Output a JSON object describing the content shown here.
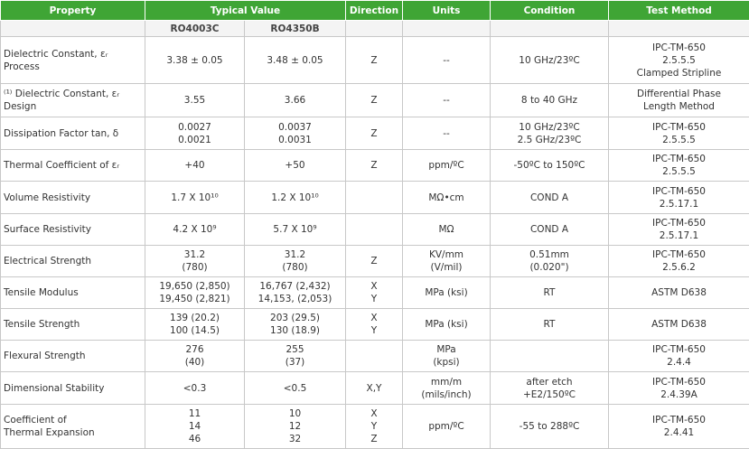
{
  "header": {
    "columns": [
      "Property",
      "Typical Value",
      "Direction",
      "Units",
      "Condition",
      "Test Method"
    ],
    "subcolumns": [
      "RO4003C",
      "RO4350B"
    ]
  },
  "table": {
    "rows": [
      [
        "Dielectric Constant, εᵣ\nProcess",
        "3.38 ± 0.05",
        "3.48 ± 0.05",
        "Z",
        "--",
        "10 GHz/23ºC",
        "IPC-TM-650\n2.5.5.5\nClamped Stripline"
      ],
      [
        "⁽¹⁾ Dielectric Constant, εᵣ\nDesign",
        "3.55",
        "3.66",
        "Z",
        "--",
        "8 to 40 GHz",
        "Differential Phase\nLength Method"
      ],
      [
        "Dissipation Factor tan, δ",
        "0.0027\n0.0021",
        "0.0037\n0.0031",
        "Z",
        "--",
        "10 GHz/23ºC\n2.5 GHz/23ºC",
        "IPC-TM-650\n2.5.5.5"
      ],
      [
        "Thermal Coefficient of εᵣ",
        "+40",
        "+50",
        "Z",
        "ppm/ºC",
        "-50ºC to 150ºC",
        "IPC-TM-650\n2.5.5.5"
      ],
      [
        "Volume Resistivity",
        "1.7 X 10¹⁰",
        "1.2 X 10¹⁰",
        "",
        "MΩ•cm",
        "COND A",
        "IPC-TM-650\n2.5.17.1"
      ],
      [
        "Surface Resistivity",
        "4.2 X 10⁹",
        "5.7 X 10⁹",
        "",
        "MΩ",
        "COND A",
        "IPC-TM-650\n2.5.17.1"
      ],
      [
        "Electrical Strength",
        "31.2\n(780)",
        "31.2\n(780)",
        "Z",
        "KV/mm\n(V/mil)",
        "0.51mm\n(0.020\")",
        "IPC-TM-650\n2.5.6.2"
      ],
      [
        "Tensile Modulus",
        "19,650 (2,850)\n19,450 (2,821)",
        "16,767 (2,432)\n14,153, (2,053)",
        "X\nY",
        "MPa (ksi)",
        "RT",
        "ASTM D638"
      ],
      [
        "Tensile Strength",
        "139 (20.2)\n100 (14.5)",
        "203 (29.5)\n130 (18.9)",
        "X\nY",
        "MPa (ksi)",
        "RT",
        "ASTM D638"
      ],
      [
        "Flexural Strength",
        "276\n(40)",
        "255\n(37)",
        "",
        "MPa\n(kpsi)",
        "",
        "IPC-TM-650\n2.4.4"
      ],
      [
        "Dimensional Stability",
        "<0.3",
        "<0.5",
        "X,Y",
        "mm/m\n(mils/inch)",
        "after etch\n+E2/150ºC",
        "IPC-TM-650\n2.4.39A"
      ],
      [
        "Coefficient of\nThermal Expansion",
        "11\n14\n46",
        "10\n12\n32",
        "X\nY\nZ",
        "ppm/ºC",
        "-55 to 288ºC",
        "IPC-TM-650\n2.4.41"
      ]
    ]
  }
}
